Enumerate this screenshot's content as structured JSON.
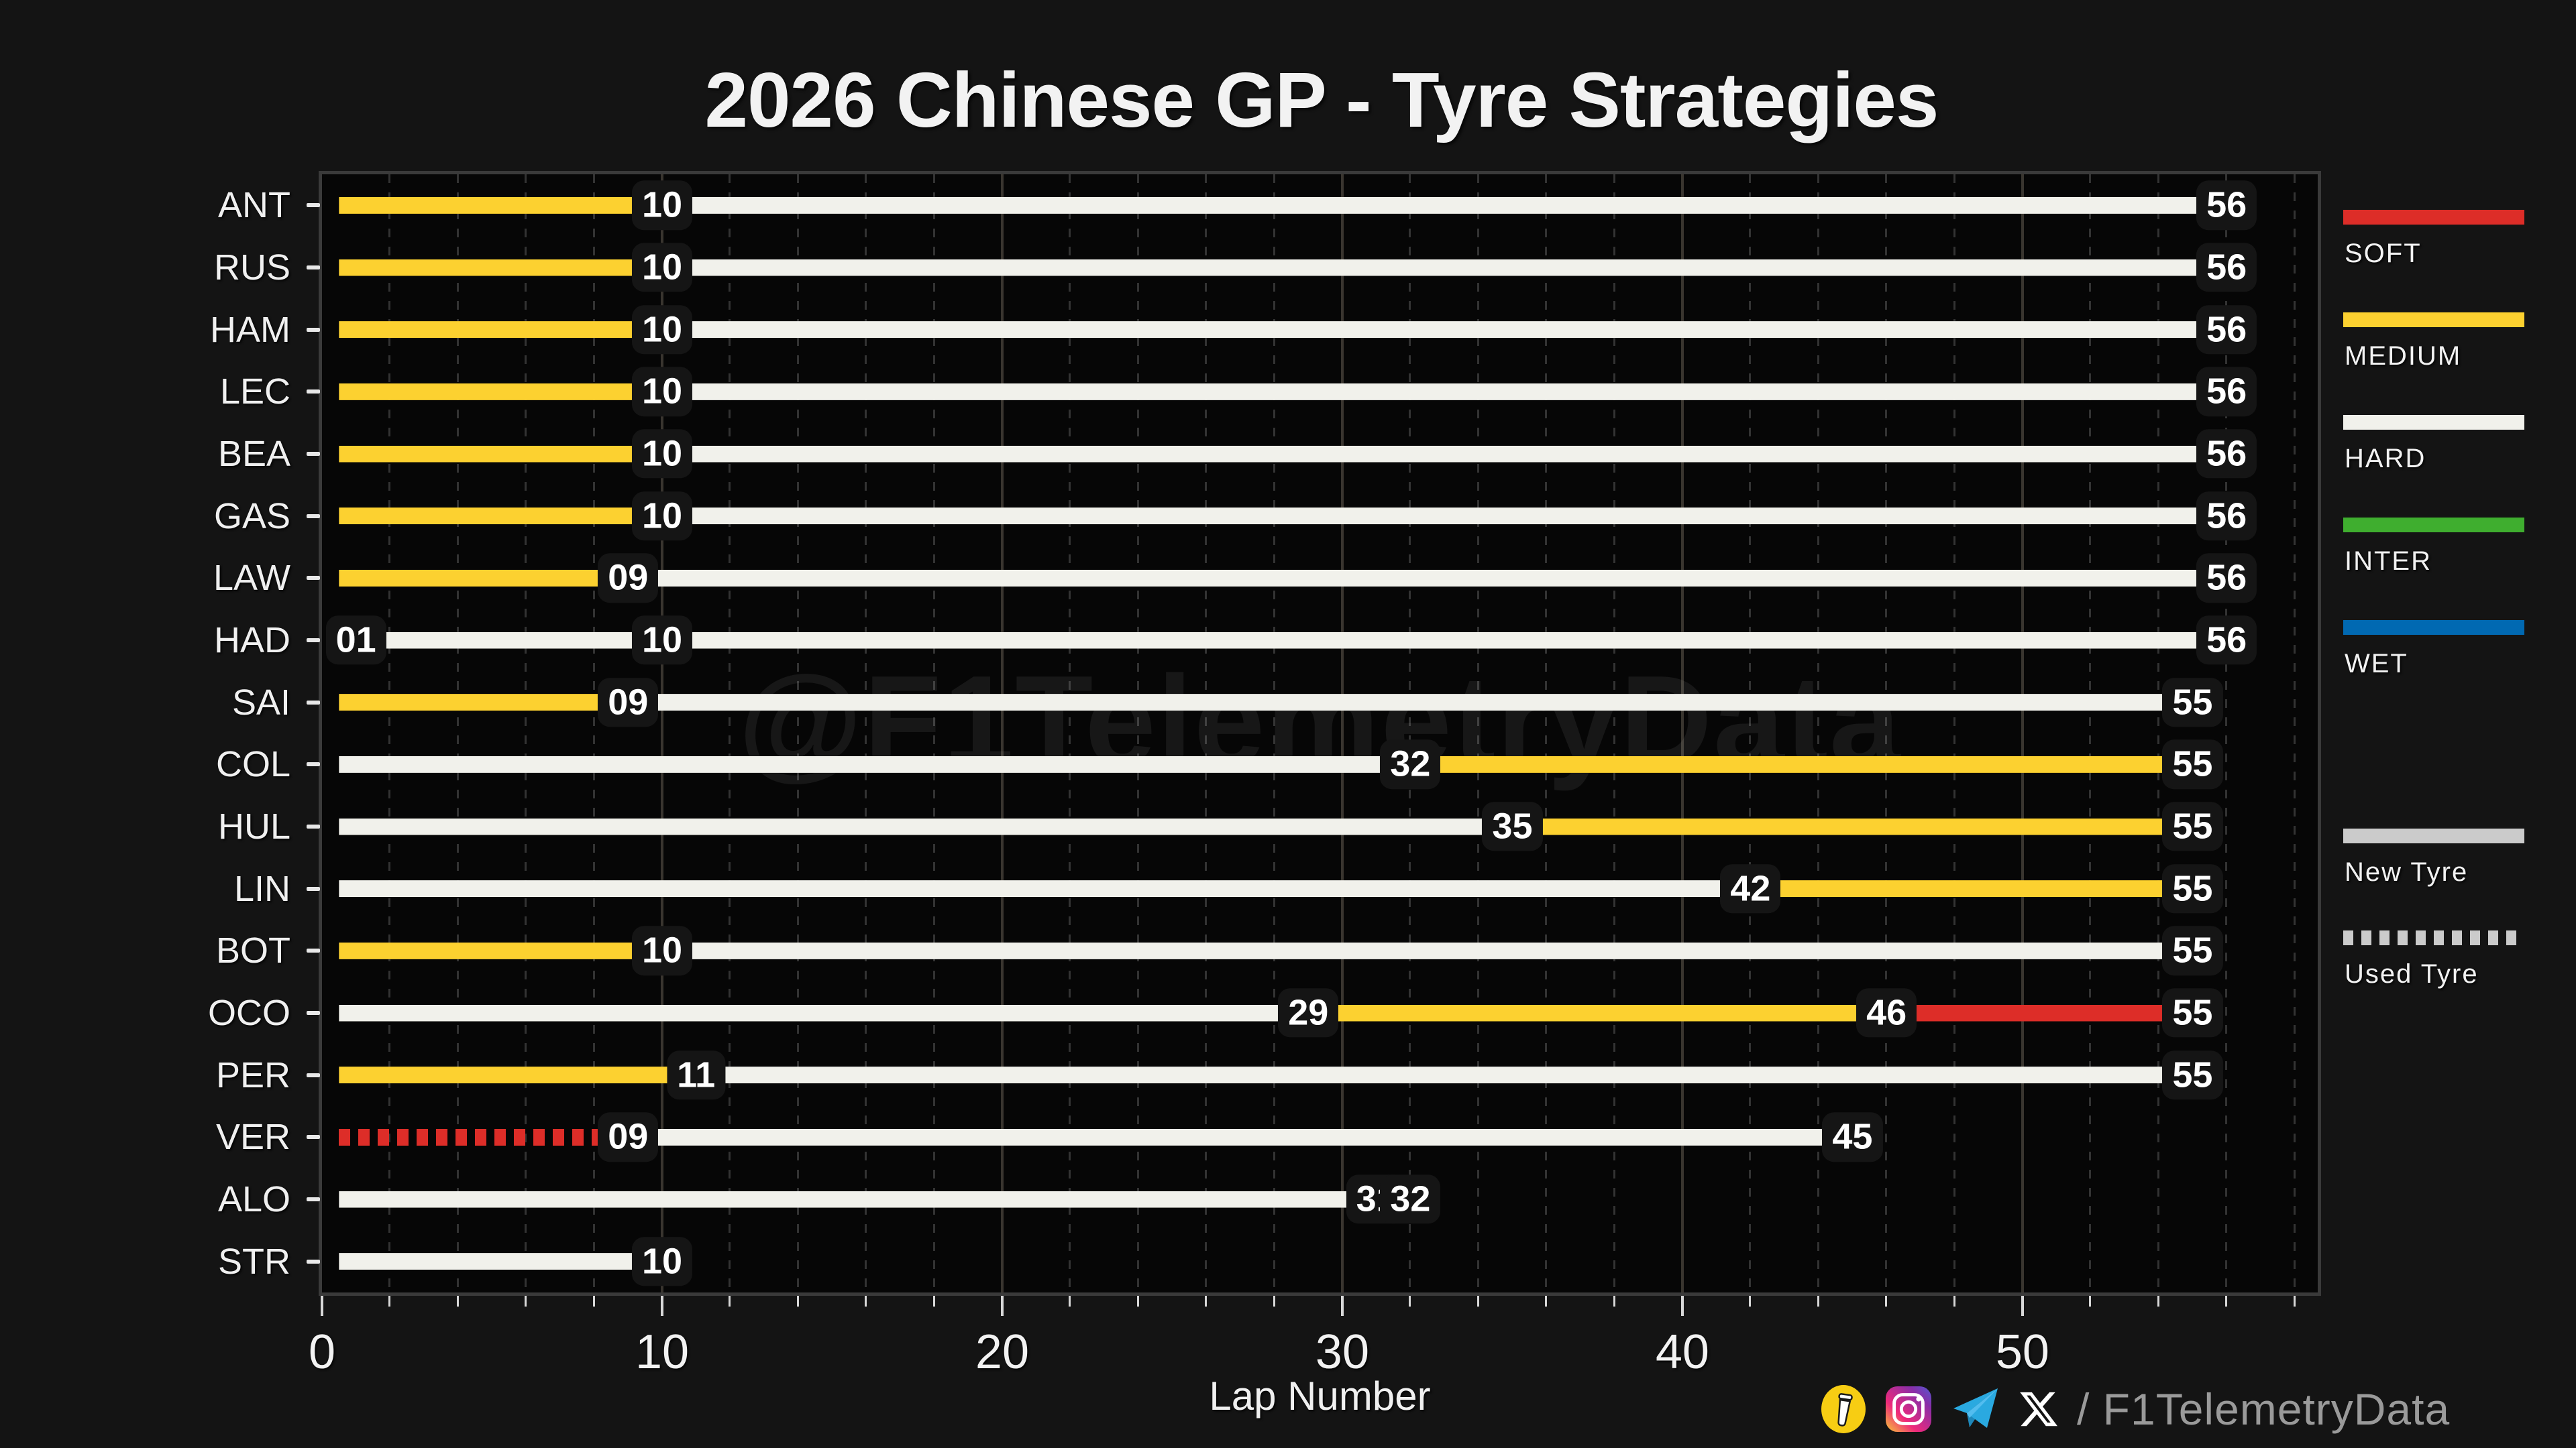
{
  "title": "2026 Chinese GP - Tyre Strategies",
  "watermark": "@F1TelemetryData",
  "footer": {
    "handle": "/ F1TelemetryData",
    "icons": [
      "buy-me-a-coffee-icon",
      "instagram-icon",
      "telegram-icon",
      "x-icon"
    ]
  },
  "chart_data": {
    "type": "bar",
    "orientation": "horizontal-stacked-timeline",
    "title": "2026 Chinese GP - Tyre Strategies",
    "xlabel": "Lap Number",
    "xlim": [
      0,
      58.68
    ],
    "x_major_ticks": [
      0,
      10,
      20,
      30,
      40,
      50
    ],
    "x_major_tick_labels": [
      "0",
      "10",
      "20",
      "30",
      "40",
      "50"
    ],
    "x_minor_tick_step": 2,
    "grid": {
      "major_solid": true,
      "minor_dashed": true
    },
    "compound_colors": {
      "SOFT": "#DD2D28",
      "MEDIUM": "#FCD130",
      "HARD": "#F1F1EB",
      "INTER": "#3FAE2F",
      "WET": "#0169B2"
    },
    "new_tyre_color": "#CBCBCB",
    "legend": {
      "compounds": [
        {
          "label": "SOFT",
          "color": "#DD2D28"
        },
        {
          "label": "MEDIUM",
          "color": "#FCD130"
        },
        {
          "label": "HARD",
          "color": "#F1F1EB"
        },
        {
          "label": "INTER",
          "color": "#3FAE2F"
        },
        {
          "label": "WET",
          "color": "#0169B2"
        }
      ],
      "conditions": [
        {
          "label": "New Tyre",
          "style": "solid",
          "color": "#CBCBCB"
        },
        {
          "label": "Used Tyre",
          "style": "dashed",
          "color": "#CBCBCB"
        }
      ]
    },
    "drivers": [
      {
        "code": "ANT",
        "stints": [
          {
            "compound": "MEDIUM",
            "used": false,
            "end_lap": 10,
            "label": "10"
          },
          {
            "compound": "HARD",
            "used": false,
            "end_lap": 56,
            "label": "56"
          }
        ]
      },
      {
        "code": "RUS",
        "stints": [
          {
            "compound": "MEDIUM",
            "used": false,
            "end_lap": 10,
            "label": "10"
          },
          {
            "compound": "HARD",
            "used": false,
            "end_lap": 56,
            "label": "56"
          }
        ]
      },
      {
        "code": "HAM",
        "stints": [
          {
            "compound": "MEDIUM",
            "used": false,
            "end_lap": 10,
            "label": "10"
          },
          {
            "compound": "HARD",
            "used": false,
            "end_lap": 56,
            "label": "56"
          }
        ]
      },
      {
        "code": "LEC",
        "stints": [
          {
            "compound": "MEDIUM",
            "used": false,
            "end_lap": 10,
            "label": "10"
          },
          {
            "compound": "HARD",
            "used": false,
            "end_lap": 56,
            "label": "56"
          }
        ]
      },
      {
        "code": "BEA",
        "stints": [
          {
            "compound": "MEDIUM",
            "used": false,
            "end_lap": 10,
            "label": "10"
          },
          {
            "compound": "HARD",
            "used": false,
            "end_lap": 56,
            "label": "56"
          }
        ]
      },
      {
        "code": "GAS",
        "stints": [
          {
            "compound": "MEDIUM",
            "used": false,
            "end_lap": 10,
            "label": "10"
          },
          {
            "compound": "HARD",
            "used": false,
            "end_lap": 56,
            "label": "56"
          }
        ]
      },
      {
        "code": "LAW",
        "stints": [
          {
            "compound": "MEDIUM",
            "used": false,
            "end_lap": 9,
            "label": "09"
          },
          {
            "compound": "HARD",
            "used": false,
            "end_lap": 56,
            "label": "56"
          }
        ]
      },
      {
        "code": "HAD",
        "stints": [
          {
            "compound": "HARD",
            "used": false,
            "end_lap": 1,
            "label": "01"
          },
          {
            "compound": "HARD",
            "used": false,
            "end_lap": 10,
            "label": "10"
          },
          {
            "compound": "HARD",
            "used": false,
            "end_lap": 56,
            "label": "56"
          }
        ]
      },
      {
        "code": "SAI",
        "stints": [
          {
            "compound": "MEDIUM",
            "used": false,
            "end_lap": 9,
            "label": "09"
          },
          {
            "compound": "HARD",
            "used": false,
            "end_lap": 55,
            "label": "55"
          }
        ]
      },
      {
        "code": "COL",
        "stints": [
          {
            "compound": "HARD",
            "used": false,
            "end_lap": 32,
            "label": "32"
          },
          {
            "compound": "MEDIUM",
            "used": false,
            "end_lap": 55,
            "label": "55"
          }
        ]
      },
      {
        "code": "HUL",
        "stints": [
          {
            "compound": "HARD",
            "used": false,
            "end_lap": 35,
            "label": "35"
          },
          {
            "compound": "MEDIUM",
            "used": false,
            "end_lap": 55,
            "label": "55"
          }
        ]
      },
      {
        "code": "LIN",
        "stints": [
          {
            "compound": "HARD",
            "used": false,
            "end_lap": 42,
            "label": "42"
          },
          {
            "compound": "MEDIUM",
            "used": false,
            "end_lap": 55,
            "label": "55"
          }
        ]
      },
      {
        "code": "BOT",
        "stints": [
          {
            "compound": "MEDIUM",
            "used": false,
            "end_lap": 10,
            "label": "10"
          },
          {
            "compound": "HARD",
            "used": false,
            "end_lap": 55,
            "label": "55"
          }
        ]
      },
      {
        "code": "OCO",
        "stints": [
          {
            "compound": "HARD",
            "used": false,
            "end_lap": 29,
            "label": "29"
          },
          {
            "compound": "MEDIUM",
            "used": false,
            "end_lap": 46,
            "label": "46"
          },
          {
            "compound": "SOFT",
            "used": false,
            "end_lap": 55,
            "label": "55"
          }
        ]
      },
      {
        "code": "PER",
        "stints": [
          {
            "compound": "MEDIUM",
            "used": false,
            "end_lap": 11,
            "label": "11"
          },
          {
            "compound": "HARD",
            "used": false,
            "end_lap": 55,
            "label": "55"
          }
        ]
      },
      {
        "code": "VER",
        "stints": [
          {
            "compound": "SOFT",
            "used": true,
            "end_lap": 9,
            "label": "09"
          },
          {
            "compound": "HARD",
            "used": false,
            "end_lap": 45,
            "label": "45"
          }
        ]
      },
      {
        "code": "ALO",
        "stints": [
          {
            "compound": "HARD",
            "used": false,
            "end_lap": 31,
            "label": "31"
          },
          {
            "compound": "HARD",
            "used": false,
            "end_lap": 32,
            "label": "32"
          }
        ]
      },
      {
        "code": "STR",
        "stints": [
          {
            "compound": "HARD",
            "used": false,
            "end_lap": 10,
            "label": "10"
          }
        ]
      }
    ]
  }
}
